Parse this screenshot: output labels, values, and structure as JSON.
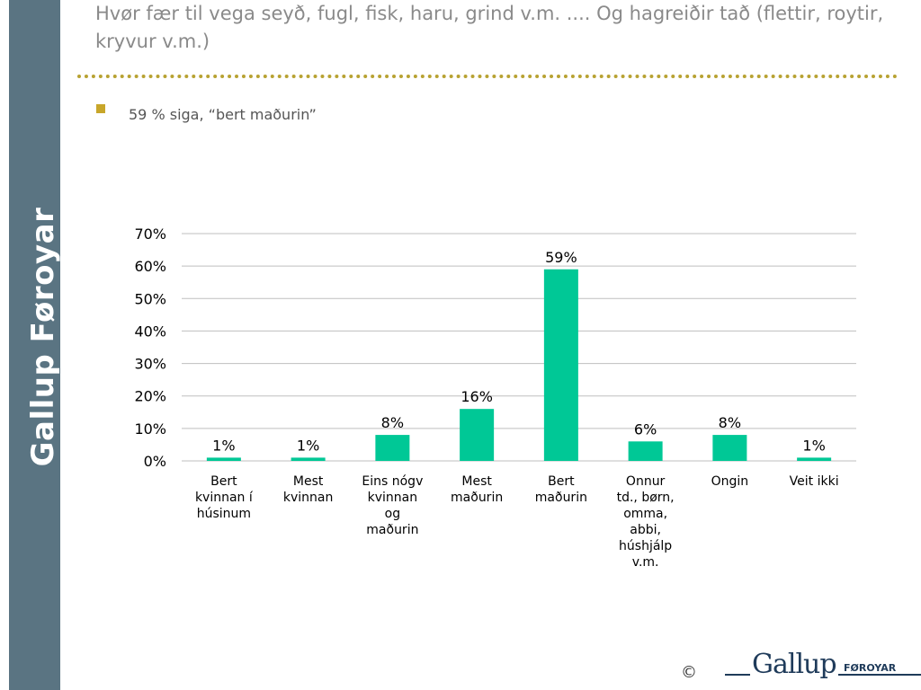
{
  "sidebar": {
    "brand_text": "Gallup Føroyar"
  },
  "slide": {
    "title": "Hvør fær til vega seyð, fugl, fisk, haru, grind v.m. .... Og hagreiðir tað (flettir, roytir, kryvur v.m.)",
    "bullet": "59 % siga, “bert maðurin”"
  },
  "footer": {
    "copyright": "©",
    "logo_text": "Gallup",
    "logo_subtext": "FØROYAR"
  },
  "colors": {
    "bar": "#00c896",
    "sidebar": "#5a7482",
    "title": "#8a8a8a",
    "divider": "#b8a232",
    "bullet": "#c8a62a",
    "gridline": "#bfbfbf"
  },
  "chart_data": {
    "type": "bar",
    "categories": [
      [
        "Bert",
        "kvinnan í",
        "húsinum"
      ],
      [
        "Mest",
        "kvinnan"
      ],
      [
        "Eins nógv",
        "kvinnan",
        "og",
        "maðurin"
      ],
      [
        "Mest",
        "maðurin"
      ],
      [
        "Bert",
        "maðurin"
      ],
      [
        "Onnur",
        "td., børn,",
        "omma,",
        "abbi,",
        "húshjálp",
        "v.m."
      ],
      [
        "Ongin"
      ],
      [
        "Veit ikki"
      ]
    ],
    "values": [
      1,
      1,
      8,
      16,
      59,
      6,
      8,
      1
    ],
    "value_labels": [
      "1%",
      "1%",
      "8%",
      "16%",
      "59%",
      "6%",
      "8%",
      "1%"
    ],
    "yticks": [
      "0%",
      "10%",
      "20%",
      "30%",
      "40%",
      "50%",
      "60%",
      "70%"
    ],
    "ylim": [
      0,
      70
    ],
    "grid": true,
    "legend": "none"
  }
}
